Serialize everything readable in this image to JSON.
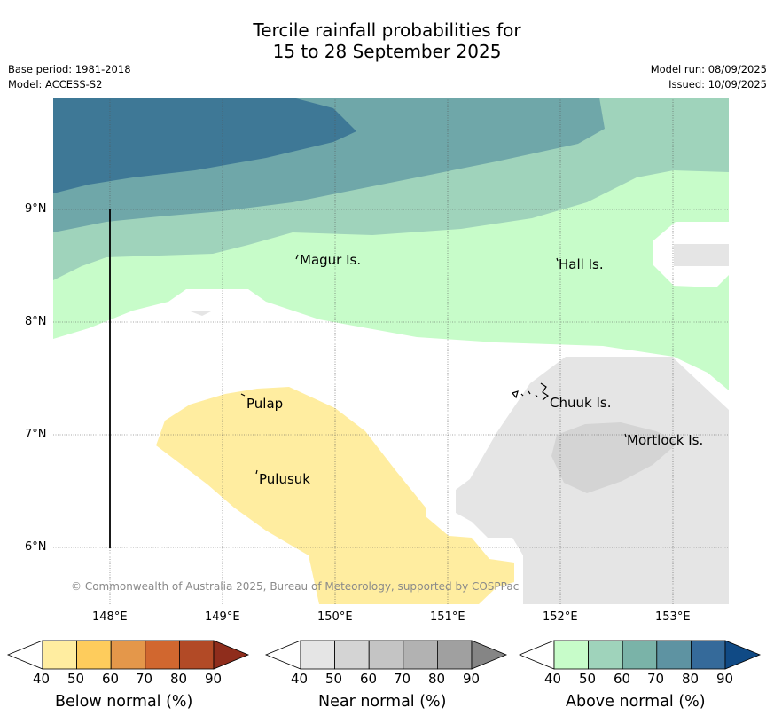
{
  "title": {
    "line1": "Tercile rainfall probabilities for",
    "line2": "15 to 28 September 2025"
  },
  "meta": {
    "base_period": "Base period: 1981-2018",
    "model": "Model: ACCESS-S2",
    "model_run": "Model run: 08/09/2025",
    "issued": "Issued: 10/09/2025"
  },
  "map": {
    "lat_labels": [
      "9°N",
      "8°N",
      "7°N",
      "6°N"
    ],
    "lon_labels": [
      "148°E",
      "149°E",
      "150°E",
      "151°E",
      "152°E",
      "153°E"
    ],
    "places": [
      "Magur Is.",
      "Hall Is.",
      "Pulap",
      "Chuuk Is.",
      "Pulusuk",
      "Mortlock Is."
    ],
    "copyright": "© Commonwealth of Australia 2025, Bureau of Meteorology, supported by COSPPac"
  },
  "colorbars": [
    {
      "title": "Below normal (%)",
      "ticks": [
        "40",
        "50",
        "60",
        "70",
        "80",
        "90"
      ],
      "colors": [
        "#ffeda0",
        "#fecc5c",
        "#e4974a",
        "#d1672f",
        "#b24a26",
        "#8f2d1c"
      ]
    },
    {
      "title": "Near normal (%)",
      "ticks": [
        "40",
        "50",
        "60",
        "70",
        "80",
        "90"
      ],
      "colors": [
        "#e5e5e5",
        "#d4d4d4",
        "#c4c4c4",
        "#b2b2b2",
        "#a0a0a0",
        "#858585"
      ]
    },
    {
      "title": "Above normal (%)",
      "ticks": [
        "40",
        "50",
        "60",
        "70",
        "80",
        "90"
      ],
      "colors": [
        "#c7fcc9",
        "#9fd3bb",
        "#7ab3a8",
        "#5e93a2",
        "#356a9a",
        "#104a85"
      ]
    }
  ]
}
